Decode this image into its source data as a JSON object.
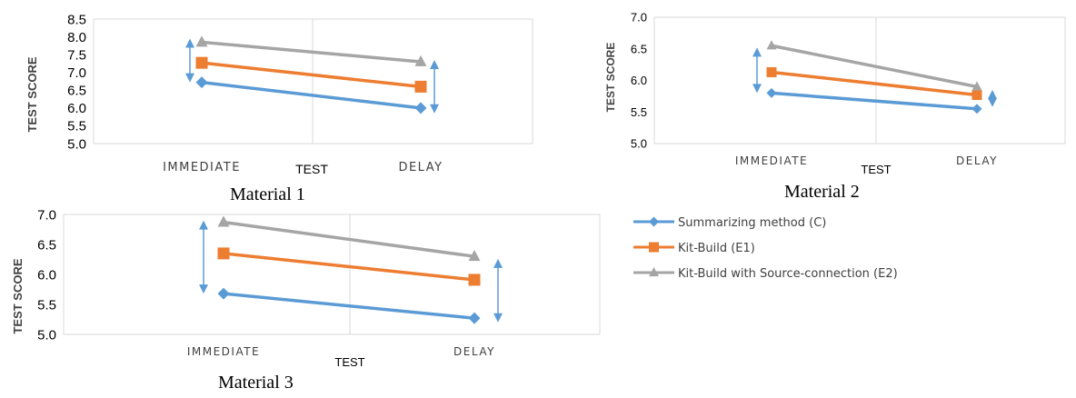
{
  "chart_data": [
    {
      "type": "line",
      "caption": "Material 1",
      "xlabel": "TEST",
      "ylabel": "TEST SCORE",
      "categories": [
        "IMMEDIATE",
        "DELAY"
      ],
      "ylim": [
        5.0,
        8.5
      ],
      "yticks": [
        "5.0",
        "5.5",
        "6.0",
        "6.5",
        "7.0",
        "7.5",
        "8.0",
        "8.5"
      ],
      "series": [
        {
          "values": [
            6.72,
            6.0
          ],
          "color": "#5b9bd5",
          "marker": "diamond"
        },
        {
          "values": [
            7.27,
            6.6
          ],
          "color": "#ed7d31",
          "marker": "square"
        },
        {
          "values": [
            7.85,
            7.3
          ],
          "color": "#a5a5a5",
          "marker": "triangle"
        }
      ],
      "arrows": [
        {
          "at": "IMMEDIATE",
          "from": 6.72,
          "to": 7.95
        },
        {
          "at": "DELAY",
          "from": 5.85,
          "to": 7.35
        }
      ]
    },
    {
      "type": "line",
      "caption": "Material 2",
      "xlabel": "TEST",
      "ylabel": "TEST SCORE",
      "categories": [
        "IMMEDIATE",
        "DELAY"
      ],
      "ylim": [
        5.0,
        7.0
      ],
      "yticks": [
        "5.0",
        "5.5",
        "6.0",
        "6.5",
        "7.0"
      ],
      "series": [
        {
          "values": [
            5.8,
            5.55
          ],
          "color": "#5b9bd5",
          "marker": "diamond"
        },
        {
          "values": [
            6.13,
            5.77
          ],
          "color": "#ed7d31",
          "marker": "square"
        },
        {
          "values": [
            6.55,
            5.9
          ],
          "color": "#a5a5a5",
          "marker": "triangle"
        }
      ],
      "arrows": [
        {
          "at": "IMMEDIATE",
          "from": 5.8,
          "to": 6.52
        },
        {
          "at": "DELAY",
          "from": 5.58,
          "to": 5.85
        }
      ]
    },
    {
      "type": "line",
      "caption": "Material 3",
      "xlabel": "TEST",
      "ylabel": "TEST SCORE",
      "categories": [
        "IMMEDIATE",
        "DELAY"
      ],
      "ylim": [
        5.0,
        7.0
      ],
      "yticks": [
        "5.0",
        "5.5",
        "6.0",
        "6.5",
        "7.0"
      ],
      "series": [
        {
          "values": [
            5.68,
            5.27
          ],
          "color": "#5b9bd5",
          "marker": "diamond"
        },
        {
          "values": [
            6.35,
            5.91
          ],
          "color": "#ed7d31",
          "marker": "square"
        },
        {
          "values": [
            6.87,
            6.3
          ],
          "color": "#a5a5a5",
          "marker": "triangle"
        }
      ],
      "arrows": [
        {
          "at": "IMMEDIATE",
          "from": 5.68,
          "to": 6.9
        },
        {
          "at": "DELAY",
          "from": 5.2,
          "to": 6.26
        }
      ]
    }
  ],
  "legend": [
    {
      "label": "Summarizing method (C)",
      "color": "#5b9bd5",
      "marker": "diamond"
    },
    {
      "label": "Kit-Build (E1)",
      "color": "#ed7d31",
      "marker": "square"
    },
    {
      "label": "Kit-Build with Source-connection (E2)",
      "color": "#a5a5a5",
      "marker": "triangle"
    }
  ],
  "colors": {
    "arrow": "#5b9bd5",
    "grid": "#d9d9d9",
    "axis_text": "#404040"
  }
}
